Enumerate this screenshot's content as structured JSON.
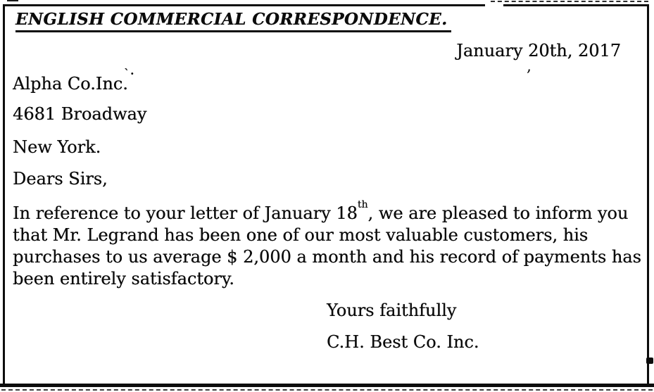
{
  "letter": {
    "heading": "ENGLISH COMMERCIAL CORRESPONDENCE.",
    "date_line": "January 20th, 2017",
    "recipient": {
      "company": "Alpha Co.Inc.",
      "street": "4681 Broadway",
      "city": "New York."
    },
    "salutation": "Dears Sirs,",
    "body": {
      "line1_pre": "In reference to your letter of January 18",
      "line1_sup": "th",
      "line1_post": ", we are pleased to inform you",
      "line2": "that Mr. Legrand has been one of our most valuable customers, his",
      "line3": "purchases to us average $ 2,000 a month and his record of payments has",
      "line4": "been entirely satisfactory."
    },
    "closing": "Yours faithfully",
    "signature": "C.H. Best Co. Inc.",
    "scan_artifacts": {
      "alpha_company_mark": "ˋ·",
      "below_date_mark": ","
    }
  },
  "colors": {
    "ink": "#0c0c0c",
    "paper": "#ffffff"
  }
}
